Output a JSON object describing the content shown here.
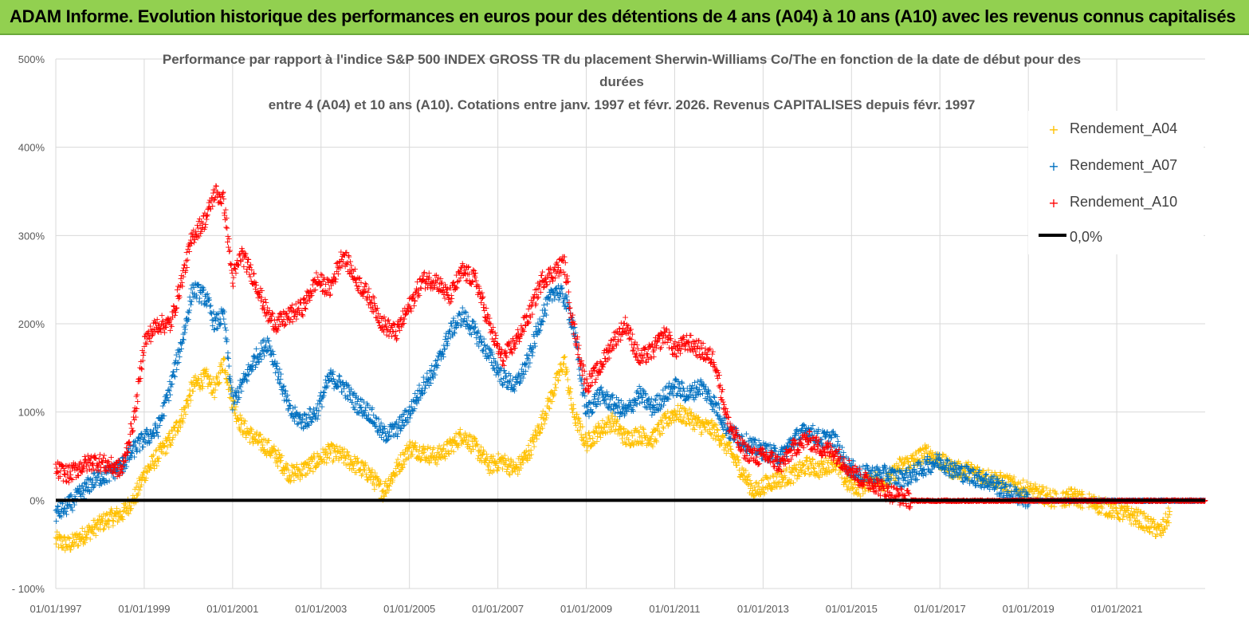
{
  "header": {
    "title": "ADAM Informe. Evolution historique des performances en euros pour des détentions de 4 ans (A04) à 10 ans (A10) avec les revenus connus capitalisés"
  },
  "chart_data": {
    "type": "scatter",
    "title_lines": [
      "Performance par rapport à l'indice S&P 500 INDEX GROSS TR  du placement Sherwin-Williams Co/The en fonction de la date de début pour des",
      "durées",
      "entre 4 (A04) et 10 ans (A10). Cotations entre janv. 1997 et févr. 2026. Revenus CAPITALISES depuis févr. 1997"
    ],
    "x_ticks": [
      "01/01/1997",
      "01/01/1999",
      "01/01/2001",
      "01/01/2003",
      "01/01/2005",
      "01/01/2007",
      "01/01/2009",
      "01/01/2011",
      "01/01/2013",
      "01/01/2015",
      "01/01/2017",
      "01/01/2019",
      "01/01/2021"
    ],
    "x_range": [
      1997.0,
      2023.0
    ],
    "y_ticks": [
      "500%",
      "400%",
      "300%",
      "200%",
      "100%",
      "0%",
      "- 100%"
    ],
    "ylim": [
      -100,
      500
    ],
    "legend": [
      "Rendement_A04",
      "Rendement_A07",
      "Rendement_A10",
      "0,0%"
    ],
    "series": [
      {
        "name": "Rendement_A04",
        "color": "#ffc000",
        "points": [
          [
            1997.0,
            -45
          ],
          [
            1997.3,
            -50
          ],
          [
            1997.6,
            -40
          ],
          [
            1997.9,
            -30
          ],
          [
            1998.2,
            -20
          ],
          [
            1998.5,
            -15
          ],
          [
            1998.8,
            5
          ],
          [
            1999.0,
            30
          ],
          [
            1999.3,
            50
          ],
          [
            1999.6,
            70
          ],
          [
            1999.9,
            100
          ],
          [
            2000.1,
            130
          ],
          [
            2000.4,
            140
          ],
          [
            2000.6,
            125
          ],
          [
            2000.8,
            160
          ],
          [
            2001.0,
            110
          ],
          [
            2001.2,
            85
          ],
          [
            2001.5,
            70
          ],
          [
            2001.8,
            60
          ],
          [
            2002.0,
            50
          ],
          [
            2002.3,
            30
          ],
          [
            2002.6,
            35
          ],
          [
            2002.9,
            45
          ],
          [
            2003.2,
            55
          ],
          [
            2003.5,
            50
          ],
          [
            2003.8,
            40
          ],
          [
            2004.1,
            30
          ],
          [
            2004.4,
            10
          ],
          [
            2004.7,
            35
          ],
          [
            2005.0,
            60
          ],
          [
            2005.3,
            55
          ],
          [
            2005.6,
            50
          ],
          [
            2005.9,
            60
          ],
          [
            2006.2,
            75
          ],
          [
            2006.5,
            60
          ],
          [
            2006.8,
            40
          ],
          [
            2007.1,
            45
          ],
          [
            2007.4,
            35
          ],
          [
            2007.7,
            55
          ],
          [
            2008.0,
            90
          ],
          [
            2008.3,
            130
          ],
          [
            2008.5,
            160
          ],
          [
            2008.7,
            100
          ],
          [
            2009.0,
            65
          ],
          [
            2009.3,
            80
          ],
          [
            2009.6,
            90
          ],
          [
            2009.9,
            70
          ],
          [
            2010.2,
            75
          ],
          [
            2010.5,
            70
          ],
          [
            2010.8,
            90
          ],
          [
            2011.0,
            100
          ],
          [
            2011.3,
            95
          ],
          [
            2011.6,
            85
          ],
          [
            2011.9,
            80
          ],
          [
            2012.2,
            60
          ],
          [
            2012.5,
            35
          ],
          [
            2012.8,
            10
          ],
          [
            2013.1,
            20
          ],
          [
            2013.4,
            25
          ],
          [
            2013.7,
            30
          ],
          [
            2014.0,
            40
          ],
          [
            2014.3,
            35
          ],
          [
            2014.6,
            45
          ],
          [
            2014.9,
            20
          ],
          [
            2015.2,
            15
          ],
          [
            2015.5,
            25
          ],
          [
            2015.8,
            20
          ],
          [
            2016.1,
            40
          ],
          [
            2016.4,
            45
          ],
          [
            2016.7,
            55
          ],
          [
            2017.0,
            45
          ],
          [
            2017.3,
            35
          ],
          [
            2017.6,
            35
          ],
          [
            2017.9,
            30
          ],
          [
            2018.2,
            25
          ],
          [
            2018.5,
            20
          ],
          [
            2018.8,
            15
          ],
          [
            2019.1,
            10
          ],
          [
            2019.4,
            5
          ],
          [
            2019.7,
            0
          ],
          [
            2020.0,
            5
          ],
          [
            2020.3,
            0
          ],
          [
            2020.6,
            -5
          ],
          [
            2020.9,
            -10
          ],
          [
            2021.2,
            -15
          ],
          [
            2021.5,
            -20
          ],
          [
            2021.8,
            -30
          ],
          [
            2022.0,
            -35
          ],
          [
            2022.2,
            -15
          ]
        ]
      },
      {
        "name": "Rendement_A07",
        "color": "#0070c0",
        "points": [
          [
            1997.0,
            -15
          ],
          [
            1997.3,
            -5
          ],
          [
            1997.6,
            10
          ],
          [
            1997.9,
            25
          ],
          [
            1998.2,
            30
          ],
          [
            1998.5,
            40
          ],
          [
            1998.8,
            60
          ],
          [
            1999.0,
            70
          ],
          [
            1999.3,
            80
          ],
          [
            1999.6,
            130
          ],
          [
            1999.9,
            190
          ],
          [
            2000.1,
            240
          ],
          [
            2000.4,
            230
          ],
          [
            2000.6,
            200
          ],
          [
            2000.8,
            210
          ],
          [
            2001.0,
            110
          ],
          [
            2001.2,
            130
          ],
          [
            2001.5,
            160
          ],
          [
            2001.8,
            180
          ],
          [
            2002.0,
            150
          ],
          [
            2002.3,
            100
          ],
          [
            2002.6,
            90
          ],
          [
            2002.9,
            100
          ],
          [
            2003.2,
            140
          ],
          [
            2003.5,
            130
          ],
          [
            2003.8,
            110
          ],
          [
            2004.1,
            100
          ],
          [
            2004.4,
            75
          ],
          [
            2004.7,
            80
          ],
          [
            2005.0,
            100
          ],
          [
            2005.3,
            130
          ],
          [
            2005.6,
            150
          ],
          [
            2005.9,
            190
          ],
          [
            2006.2,
            210
          ],
          [
            2006.5,
            190
          ],
          [
            2006.8,
            165
          ],
          [
            2007.1,
            140
          ],
          [
            2007.4,
            130
          ],
          [
            2007.7,
            160
          ],
          [
            2008.0,
            210
          ],
          [
            2008.3,
            240
          ],
          [
            2008.5,
            230
          ],
          [
            2008.7,
            200
          ],
          [
            2009.0,
            100
          ],
          [
            2009.3,
            120
          ],
          [
            2009.6,
            110
          ],
          [
            2009.9,
            100
          ],
          [
            2010.2,
            120
          ],
          [
            2010.5,
            105
          ],
          [
            2010.8,
            120
          ],
          [
            2011.0,
            130
          ],
          [
            2011.3,
            120
          ],
          [
            2011.6,
            130
          ],
          [
            2011.9,
            110
          ],
          [
            2012.2,
            80
          ],
          [
            2012.5,
            70
          ],
          [
            2012.8,
            60
          ],
          [
            2013.1,
            55
          ],
          [
            2013.4,
            50
          ],
          [
            2013.7,
            70
          ],
          [
            2014.0,
            80
          ],
          [
            2014.3,
            70
          ],
          [
            2014.6,
            70
          ],
          [
            2014.9,
            40
          ],
          [
            2015.2,
            30
          ],
          [
            2015.5,
            30
          ],
          [
            2015.8,
            30
          ],
          [
            2016.1,
            25
          ],
          [
            2016.4,
            30
          ],
          [
            2016.7,
            40
          ],
          [
            2017.0,
            45
          ],
          [
            2017.3,
            35
          ],
          [
            2017.6,
            30
          ],
          [
            2017.9,
            25
          ],
          [
            2018.2,
            20
          ],
          [
            2018.5,
            10
          ],
          [
            2018.8,
            5
          ],
          [
            2019.1,
            0
          ],
          [
            2019.4,
            0
          ],
          [
            2019.7,
            0
          ],
          [
            2020.0,
            0
          ],
          [
            2020.3,
            0
          ],
          [
            2020.6,
            0
          ],
          [
            2020.9,
            0
          ],
          [
            2021.2,
            0
          ],
          [
            2021.5,
            0
          ],
          [
            2021.8,
            0
          ],
          [
            2022.1,
            0
          ],
          [
            2022.4,
            0
          ],
          [
            2022.7,
            0
          ],
          [
            2023.0,
            0
          ]
        ]
      },
      {
        "name": "Rendement_A10",
        "color": "#ff0000",
        "points": [
          [
            1997.0,
            35
          ],
          [
            1997.3,
            30
          ],
          [
            1997.6,
            40
          ],
          [
            1997.9,
            45
          ],
          [
            1998.2,
            40
          ],
          [
            1998.5,
            35
          ],
          [
            1998.8,
            100
          ],
          [
            1999.0,
            180
          ],
          [
            1999.3,
            200
          ],
          [
            1999.6,
            200
          ],
          [
            1999.9,
            260
          ],
          [
            2000.1,
            300
          ],
          [
            2000.4,
            320
          ],
          [
            2000.6,
            350
          ],
          [
            2000.8,
            340
          ],
          [
            2001.0,
            250
          ],
          [
            2001.2,
            280
          ],
          [
            2001.5,
            250
          ],
          [
            2001.8,
            210
          ],
          [
            2002.0,
            200
          ],
          [
            2002.3,
            210
          ],
          [
            2002.6,
            220
          ],
          [
            2002.9,
            250
          ],
          [
            2003.2,
            240
          ],
          [
            2003.5,
            280
          ],
          [
            2003.8,
            250
          ],
          [
            2004.1,
            230
          ],
          [
            2004.4,
            200
          ],
          [
            2004.7,
            190
          ],
          [
            2005.0,
            220
          ],
          [
            2005.3,
            250
          ],
          [
            2005.6,
            250
          ],
          [
            2005.9,
            230
          ],
          [
            2006.2,
            260
          ],
          [
            2006.5,
            250
          ],
          [
            2006.8,
            200
          ],
          [
            2007.1,
            160
          ],
          [
            2007.4,
            180
          ],
          [
            2007.7,
            210
          ],
          [
            2008.0,
            250
          ],
          [
            2008.3,
            260
          ],
          [
            2008.5,
            270
          ],
          [
            2008.7,
            200
          ],
          [
            2009.0,
            130
          ],
          [
            2009.3,
            150
          ],
          [
            2009.6,
            180
          ],
          [
            2009.9,
            200
          ],
          [
            2010.2,
            160
          ],
          [
            2010.5,
            170
          ],
          [
            2010.8,
            190
          ],
          [
            2011.0,
            170
          ],
          [
            2011.3,
            180
          ],
          [
            2011.6,
            170
          ],
          [
            2011.9,
            160
          ],
          [
            2012.2,
            90
          ],
          [
            2012.5,
            60
          ],
          [
            2012.8,
            50
          ],
          [
            2013.1,
            50
          ],
          [
            2013.4,
            40
          ],
          [
            2013.7,
            60
          ],
          [
            2014.0,
            70
          ],
          [
            2014.3,
            60
          ],
          [
            2014.6,
            55
          ],
          [
            2014.9,
            40
          ],
          [
            2015.2,
            25
          ],
          [
            2015.5,
            20
          ],
          [
            2015.8,
            10
          ],
          [
            2016.1,
            5
          ],
          [
            2016.4,
            0
          ],
          [
            2016.7,
            0
          ],
          [
            2017.0,
            0
          ],
          [
            2017.3,
            0
          ],
          [
            2017.6,
            0
          ],
          [
            2017.9,
            0
          ],
          [
            2018.2,
            0
          ],
          [
            2018.5,
            0
          ],
          [
            2018.8,
            0
          ],
          [
            2019.1,
            0
          ],
          [
            2019.4,
            0
          ],
          [
            2019.7,
            0
          ],
          [
            2020.0,
            0
          ],
          [
            2020.3,
            0
          ],
          [
            2020.6,
            0
          ],
          [
            2020.9,
            0
          ],
          [
            2021.2,
            0
          ],
          [
            2021.5,
            0
          ],
          [
            2021.8,
            0
          ],
          [
            2022.1,
            0
          ],
          [
            2022.4,
            0
          ],
          [
            2022.7,
            0
          ],
          [
            2023.0,
            0
          ]
        ]
      }
    ],
    "zero_line": {
      "name": "0,0%",
      "color": "#000000",
      "value": 0
    }
  }
}
